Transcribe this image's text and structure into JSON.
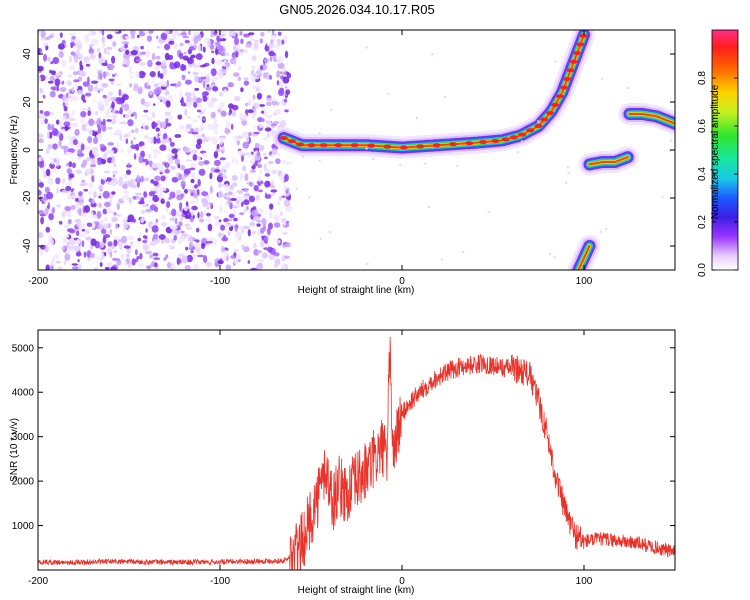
{
  "title": "GN05.2026.034.10.17.R05",
  "chart_data": [
    {
      "type": "heatmap",
      "xlabel": "Height of straight line (km)",
      "ylabel": "Frequency (Hz)",
      "xlim": [
        -200,
        150
      ],
      "ylim": [
        -50,
        50
      ],
      "xticks": [
        -200,
        -100,
        0,
        100
      ],
      "yticks": [
        -40,
        -20,
        0,
        20,
        40
      ],
      "colorbar": {
        "label": "Normalized spectral amplitude",
        "range": [
          0,
          1
        ],
        "ticks": [
          0.0,
          0.2,
          0.4,
          0.6,
          0.8
        ]
      },
      "ridge": {
        "x": [
          -65,
          -55,
          -40,
          -20,
          0,
          20,
          40,
          55,
          65,
          75,
          82,
          88,
          92,
          96,
          100
        ],
        "y": [
          5,
          2,
          2,
          2,
          1,
          2,
          3,
          4,
          6,
          10,
          16,
          24,
          32,
          40,
          48
        ]
      },
      "segments": [
        {
          "x": [
            103,
            110,
            117,
            124
          ],
          "y": [
            -6,
            -5,
            -5,
            -3
          ]
        },
        {
          "x": [
            125,
            132,
            140,
            150
          ],
          "y": [
            15,
            15,
            14,
            11
          ]
        },
        {
          "x": [
            97,
            100,
            103
          ],
          "y": [
            -50,
            -45,
            -40
          ]
        }
      ],
      "noise_region": {
        "x": [
          -200,
          -62
        ]
      }
    },
    {
      "type": "line",
      "xlabel": "Height of straight line (km)",
      "ylabel": "SNR (10 * v/v)",
      "xlim": [
        -200,
        150
      ],
      "ylim": [
        0,
        5400
      ],
      "xticks": [
        -200,
        -100,
        0,
        100
      ],
      "yticks": [
        1000,
        2000,
        3000,
        4000,
        5000
      ],
      "color": "#e8332a",
      "series": [
        {
          "x": [
            -200,
            -180,
            -160,
            -140,
            -120,
            -100,
            -80,
            -65,
            -60,
            -55,
            -50,
            -45,
            -42,
            -38,
            -35,
            -30,
            -25,
            -20,
            -15,
            -10,
            -8,
            -7,
            -5,
            -2,
            0,
            5,
            10,
            15,
            20,
            25,
            30,
            35,
            40,
            45,
            50,
            55,
            60,
            65,
            70,
            75,
            80,
            85,
            90,
            95,
            100,
            110,
            120,
            130,
            140,
            150
          ],
          "y": [
            180,
            170,
            190,
            180,
            175,
            180,
            200,
            210,
            300,
            600,
            1200,
            1800,
            2300,
            1500,
            1900,
            1700,
            2000,
            2200,
            2500,
            2800,
            2100,
            5350,
            2600,
            3200,
            3500,
            3800,
            4000,
            4200,
            4350,
            4450,
            4550,
            4600,
            4620,
            4650,
            4600,
            4550,
            4550,
            4500,
            4400,
            3800,
            3000,
            2000,
            1300,
            800,
            650,
            700,
            650,
            600,
            500,
            400
          ]
        }
      ]
    }
  ]
}
